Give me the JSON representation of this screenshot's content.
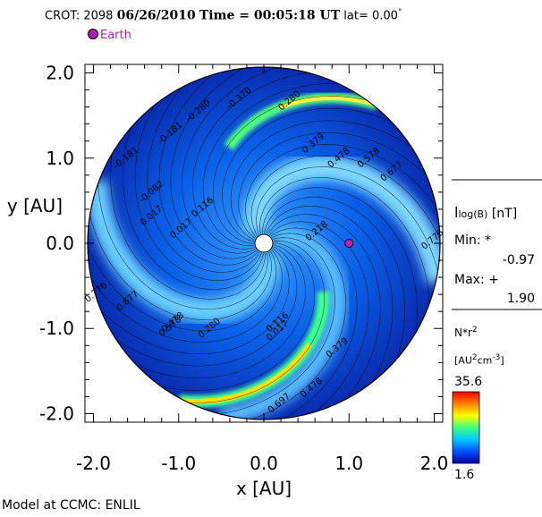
{
  "header": {
    "crot_label": "CROT: 2098",
    "date": "06/26/2010",
    "time": "Time = 00:05:18 UT",
    "lat": "lat= 0.00",
    "lat_deg": "°"
  },
  "legend": {
    "earth": "Earth"
  },
  "footer": "Model at CCMC: ENLIL",
  "sidepanel": {
    "field_label_prefix": "l",
    "field_label_sub": "log(B)",
    "field_label_unit": "[nT]",
    "min_label": "Min: *",
    "min_value": "-0.97",
    "max_label": "Max: +",
    "max_value": "1.90",
    "colorbar_label": "N*r",
    "colorbar_label_sup": "2",
    "colorbar_unit": "[AU",
    "colorbar_unit_sup1": "2",
    "colorbar_unit_mid": "cm",
    "colorbar_unit_sup2": "-3",
    "colorbar_unit_end": "]",
    "colorbar_max": "35.6",
    "colorbar_min": "1.6",
    "colorbar_colors": [
      "#0000a0",
      "#0050ff",
      "#00c8ff",
      "#40ff80",
      "#ffff00",
      "#ff8000",
      "#ff0000"
    ]
  },
  "chart_data": {
    "type": "heatmap",
    "xlabel": "x [AU]",
    "ylabel": "y [AU]",
    "xlim": [
      -2.1,
      2.1
    ],
    "ylim": [
      -2.1,
      2.1
    ],
    "xticks": [
      "-2.0",
      "-1.0",
      "0.0",
      "1.0",
      "2.0"
    ],
    "yticks": [
      "-2.0",
      "-1.0",
      "0.0",
      "1.0",
      "2.0"
    ],
    "tick_values": [
      -2.0,
      -1.0,
      0.0,
      1.0,
      2.0
    ],
    "domain_radius_au": 2.0,
    "inner_radius_au": 0.1,
    "earth_position": {
      "x": 1.0,
      "y": 0.0
    },
    "colorbar_range": [
      1.6,
      35.6
    ],
    "contour_labels": [
      {
        "text": "-0.370",
        "x": -0.27,
        "y": 1.68
      },
      {
        "text": "-0.280",
        "x": -0.75,
        "y": 1.53
      },
      {
        "text": "-0.181",
        "x": -1.08,
        "y": 1.27
      },
      {
        "text": "-0.181",
        "x": -1.6,
        "y": 0.98
      },
      {
        "text": "-0.082",
        "x": -1.3,
        "y": 0.58
      },
      {
        "text": "0.017",
        "x": -1.3,
        "y": 0.3
      },
      {
        "text": "0.116",
        "x": -0.7,
        "y": 0.4
      },
      {
        "text": "0.017",
        "x": -0.95,
        "y": 0.15
      },
      {
        "text": "0.280",
        "x": 0.32,
        "y": 1.65
      },
      {
        "text": "0.379",
        "x": 0.6,
        "y": 1.15
      },
      {
        "text": "0.478",
        "x": 0.9,
        "y": 0.98
      },
      {
        "text": "0.578",
        "x": 1.25,
        "y": 0.98
      },
      {
        "text": "0.677",
        "x": 1.52,
        "y": 0.82
      },
      {
        "text": "0.776",
        "x": 2.0,
        "y": 0.02
      },
      {
        "text": "0.218",
        "x": 0.64,
        "y": 0.12
      },
      {
        "text": "0.116",
        "x": 0.18,
        "y": -0.95
      },
      {
        "text": "0.017",
        "x": 0.18,
        "y": -1.05
      },
      {
        "text": "0.379",
        "x": 0.88,
        "y": -1.25
      },
      {
        "text": "0.478",
        "x": 0.58,
        "y": -1.72
      },
      {
        "text": "0.697",
        "x": 0.2,
        "y": -1.9
      },
      {
        "text": "0.280",
        "x": -0.62,
        "y": -1.02
      },
      {
        "text": "0.578",
        "x": -1.08,
        "y": -1.0
      },
      {
        "text": "0.677",
        "x": -1.58,
        "y": -0.7
      },
      {
        "text": "0.776",
        "x": -1.95,
        "y": -0.6
      },
      {
        "text": "0.478",
        "x": -1.05,
        "y": -0.95
      }
    ]
  }
}
